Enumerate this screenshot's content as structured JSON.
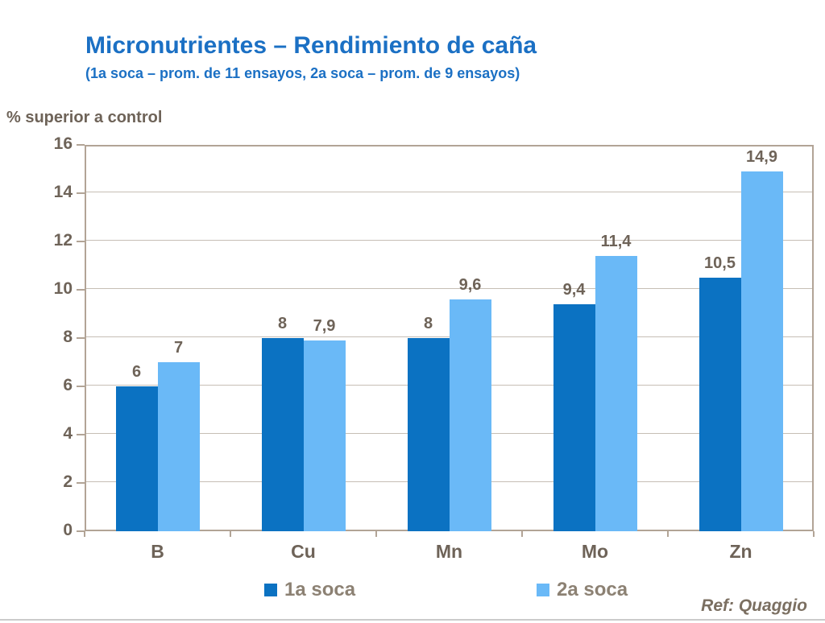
{
  "slide": {
    "title": "Micronutrientes – Rendimiento de caña",
    "subtitle": "(1a soca – prom. de 11 ensayos, 2a soca – prom. de 9 ensayos)",
    "reference": "Ref: Quaggio"
  },
  "colors": {
    "title_blue": "#1b70c4",
    "series1_blue": "#0b72c2",
    "series2_blue": "#6ab9f7",
    "label_brown": "#6e6358",
    "legend_text": "#8c8173",
    "plot_border": "#b2a496",
    "gridline": "#c6beb5"
  },
  "chart_data": {
    "type": "bar",
    "title": "Micronutrientes – Rendimiento de caña",
    "subtitle": "(1a soca – prom. de 11 ensayos, 2a soca – prom. de 9 ensayos)",
    "ylabel": "% superior a control",
    "xlabel": "",
    "categories": [
      "B",
      "Cu",
      "Mn",
      "Mo",
      "Zn"
    ],
    "series": [
      {
        "name": "1a soca",
        "color": "#0b72c2",
        "values": [
          6,
          8,
          8,
          9.4,
          10.5
        ],
        "labels": [
          "6",
          "8",
          "8",
          "9,4",
          "10,5"
        ]
      },
      {
        "name": "2a soca",
        "color": "#6ab9f7",
        "values": [
          7,
          7.9,
          9.6,
          11.4,
          14.9
        ],
        "labels": [
          "7",
          "7,9",
          "9,6",
          "11,4",
          "14,9"
        ]
      }
    ],
    "ylim": [
      0,
      16
    ],
    "yticks": [
      0,
      2,
      4,
      6,
      8,
      10,
      12,
      14,
      16
    ],
    "grid": "horizontal",
    "legend_position": "bottom",
    "annotation": "Ref: Quaggio"
  }
}
